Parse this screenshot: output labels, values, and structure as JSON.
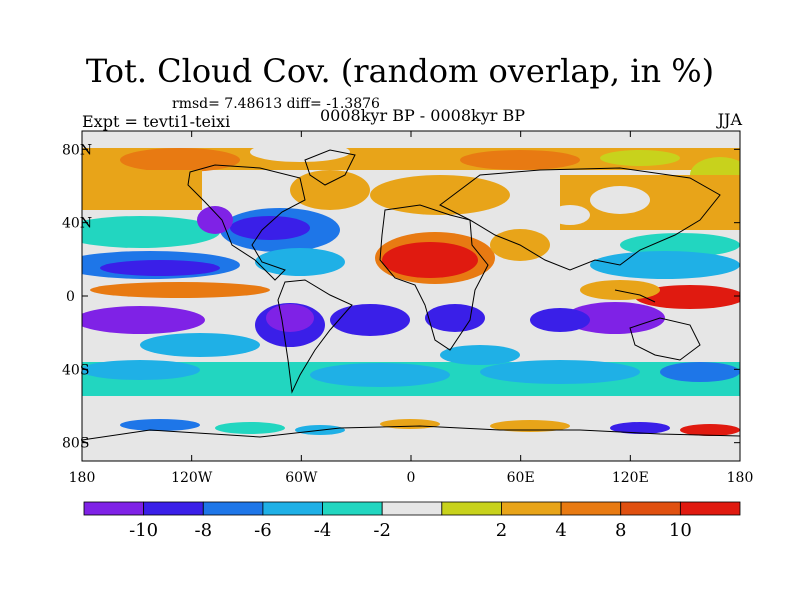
{
  "title": "Tot. Cloud Cov. (random overlap, in %)",
  "stats": "rmsd= 7.48613 diff= -1.3876",
  "experiment": "Expt = tevti1-teixi",
  "comparison": "0008kyr BP - 0008kyr BP",
  "season": "JJA",
  "lon_ticks": [
    "180",
    "120W",
    "60W",
    "0",
    "60E",
    "120E",
    "180"
  ],
  "lat_ticks": [
    "80N",
    "40N",
    "0",
    "40S",
    "80S"
  ],
  "colorbar": {
    "colors": [
      "#7f22e6",
      "#3a1fe8",
      "#1e76e8",
      "#1fb0e6",
      "#22d6c0",
      "#e6e6e6",
      "#c8d21c",
      "#e8a419",
      "#e87a12",
      "#e05010",
      "#e01a10"
    ],
    "labels": [
      "-10",
      "-8",
      "-6",
      "-4",
      "-2",
      "2",
      "4",
      "8",
      "10"
    ]
  }
}
